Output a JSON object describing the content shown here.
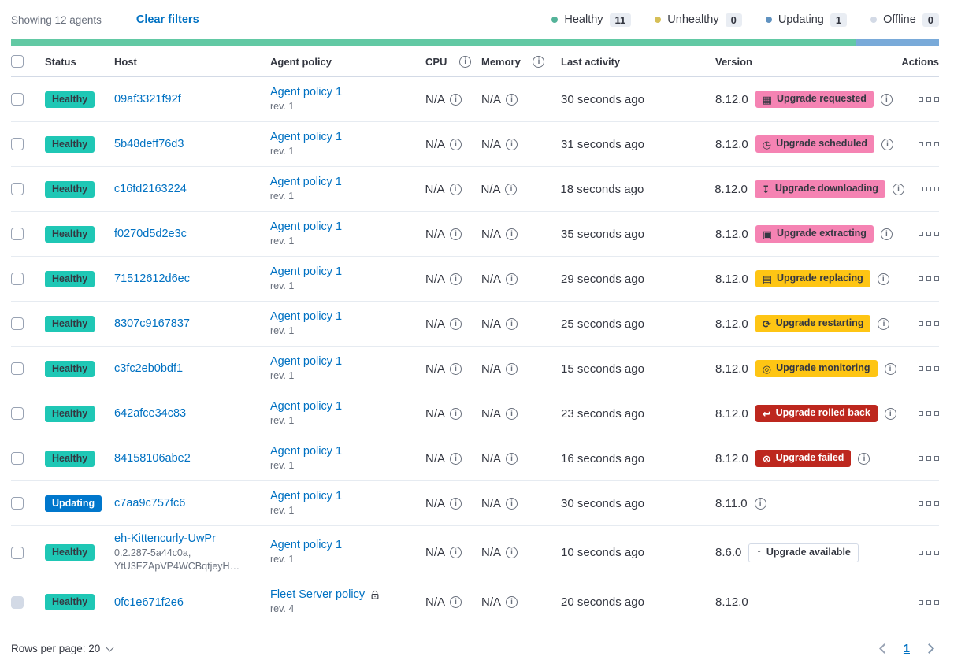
{
  "colors": {
    "link": "#0071C2",
    "healthy": "#1FC7B5",
    "updating": "#0077CC",
    "accent": "#F583B3",
    "warning": "#FEC514",
    "danger": "#BD271E",
    "bar-green": "#62C9A4",
    "bar-blue": "#79AAD9"
  },
  "toolbar": {
    "showing_text": "Showing 12 agents",
    "clear_filters_label": "Clear filters",
    "legend": [
      {
        "label": "Healthy",
        "count": "11",
        "dot_color": "#54B399"
      },
      {
        "label": "Unhealthy",
        "count": "0",
        "dot_color": "#D6BF57"
      },
      {
        "label": "Updating",
        "count": "1",
        "dot_color": "#6092C0"
      },
      {
        "label": "Offline",
        "count": "0",
        "dot_color": "#D3DAE6"
      }
    ]
  },
  "health_bar": {
    "green_width": "91.1%",
    "blue_width": "8.9%"
  },
  "table": {
    "headers": {
      "status": "Status",
      "host": "Host",
      "policy": "Agent policy",
      "cpu": "CPU",
      "memory": "Memory",
      "last_activity": "Last activity",
      "version": "Version",
      "actions": "Actions"
    },
    "rows": [
      {
        "status": "Healthy",
        "status_style": "healthy",
        "host": "09af3321f92f",
        "policy": "Agent policy 1",
        "policy_rev": "rev. 1",
        "cpu": "N/A",
        "memory": "N/A",
        "last_activity": "30 seconds ago",
        "version": "8.12.0",
        "version_info": true,
        "upgrade": {
          "label": "Upgrade requested",
          "style": "accent",
          "icon": "calendar-icon",
          "glyph": "▦"
        }
      },
      {
        "status": "Healthy",
        "status_style": "healthy",
        "host": "5b48deff76d3",
        "policy": "Agent policy 1",
        "policy_rev": "rev. 1",
        "cpu": "N/A",
        "memory": "N/A",
        "last_activity": "31 seconds ago",
        "version": "8.12.0",
        "version_info": true,
        "upgrade": {
          "label": "Upgrade scheduled",
          "style": "accent",
          "icon": "clock-icon",
          "glyph": "◷"
        }
      },
      {
        "status": "Healthy",
        "status_style": "healthy",
        "host": "c16fd2163224",
        "policy": "Agent policy 1",
        "policy_rev": "rev. 1",
        "cpu": "N/A",
        "memory": "N/A",
        "last_activity": "18 seconds ago",
        "version": "8.12.0",
        "version_info": true,
        "upgrade": {
          "label": "Upgrade downloading",
          "style": "accent",
          "icon": "download-icon",
          "glyph": "↧"
        }
      },
      {
        "status": "Healthy",
        "status_style": "healthy",
        "host": "f0270d5d2e3c",
        "policy": "Agent policy 1",
        "policy_rev": "rev. 1",
        "cpu": "N/A",
        "memory": "N/A",
        "last_activity": "35 seconds ago",
        "version": "8.12.0",
        "version_info": true,
        "upgrade": {
          "label": "Upgrade extracting",
          "style": "accent",
          "icon": "package-icon",
          "glyph": "▣"
        }
      },
      {
        "status": "Healthy",
        "status_style": "healthy",
        "host": "71512612d6ec",
        "policy": "Agent policy 1",
        "policy_rev": "rev. 1",
        "cpu": "N/A",
        "memory": "N/A",
        "last_activity": "29 seconds ago",
        "version": "8.12.0",
        "version_info": true,
        "upgrade": {
          "label": "Upgrade replacing",
          "style": "warning",
          "icon": "document-icon",
          "glyph": "▤"
        }
      },
      {
        "status": "Healthy",
        "status_style": "healthy",
        "host": "8307c9167837",
        "policy": "Agent policy 1",
        "policy_rev": "rev. 1",
        "cpu": "N/A",
        "memory": "N/A",
        "last_activity": "25 seconds ago",
        "version": "8.12.0",
        "version_info": true,
        "upgrade": {
          "label": "Upgrade restarting",
          "style": "warning",
          "icon": "refresh-icon",
          "glyph": "⟳"
        }
      },
      {
        "status": "Healthy",
        "status_style": "healthy",
        "host": "c3fc2eb0bdf1",
        "policy": "Agent policy 1",
        "policy_rev": "rev. 1",
        "cpu": "N/A",
        "memory": "N/A",
        "last_activity": "15 seconds ago",
        "version": "8.12.0",
        "version_info": true,
        "upgrade": {
          "label": "Upgrade monitoring",
          "style": "warning",
          "icon": "inspect-icon",
          "glyph": "◎"
        }
      },
      {
        "status": "Healthy",
        "status_style": "healthy",
        "host": "642afce34c83",
        "policy": "Agent policy 1",
        "policy_rev": "rev. 1",
        "cpu": "N/A",
        "memory": "N/A",
        "last_activity": "23 seconds ago",
        "version": "8.12.0",
        "version_info": true,
        "upgrade": {
          "label": "Upgrade rolled back",
          "style": "danger",
          "icon": "return-arrow-icon",
          "glyph": "↩"
        }
      },
      {
        "status": "Healthy",
        "status_style": "healthy",
        "host": "84158106abe2",
        "policy": "Agent policy 1",
        "policy_rev": "rev. 1",
        "cpu": "N/A",
        "memory": "N/A",
        "last_activity": "16 seconds ago",
        "version": "8.12.0",
        "version_info": true,
        "upgrade": {
          "label": "Upgrade failed",
          "style": "danger",
          "icon": "error-circle-icon",
          "glyph": "⊗"
        }
      },
      {
        "status": "Updating",
        "status_style": "updating",
        "host": "c7aa9c757fc6",
        "policy": "Agent policy 1",
        "policy_rev": "rev. 1",
        "cpu": "N/A",
        "memory": "N/A",
        "last_activity": "30 seconds ago",
        "version": "8.11.0",
        "version_info": true
      },
      {
        "status": "Healthy",
        "status_style": "healthy",
        "host": "eh-Kittencurly-UwPr",
        "host_sub": [
          "0.2.287-5a44c0a,",
          "YtU3FZApVP4WCBqtjeyH…"
        ],
        "policy": "Agent policy 1",
        "policy_rev": "rev. 1",
        "cpu": "N/A",
        "memory": "N/A",
        "last_activity": "10 seconds ago",
        "version": "8.6.0",
        "version_info": false,
        "upgrade": {
          "label": "Upgrade available",
          "style": "hollow",
          "icon": "arrow-up-icon",
          "glyph": "↑"
        }
      },
      {
        "status": "Healthy",
        "status_style": "healthy",
        "host": "0fc1e671f2e6",
        "policy": "Fleet Server policy",
        "policy_rev": "rev. 4",
        "policy_locked": true,
        "checkbox_disabled": true,
        "cpu": "N/A",
        "memory": "N/A",
        "last_activity": "20 seconds ago",
        "version": "8.12.0",
        "version_info": false
      }
    ]
  },
  "footer": {
    "rows_per_page": "Rows per page: 20",
    "page": "1"
  }
}
